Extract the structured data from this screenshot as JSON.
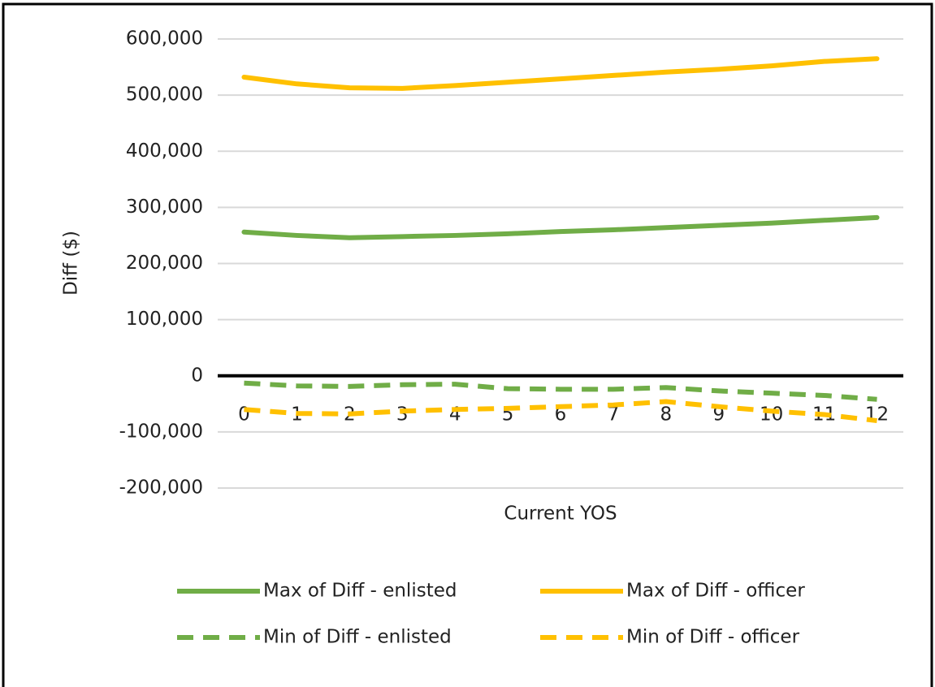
{
  "chart_data": {
    "type": "line",
    "x_label": "Current YOS",
    "y_label": "Diff  ($)",
    "categories": [
      "0",
      "1",
      "2",
      "3",
      "4",
      "5",
      "6",
      "7",
      "8",
      "9",
      "10",
      "11",
      "12"
    ],
    "series": [
      {
        "name": "Max of Diff - enlisted",
        "color": "#70ad47",
        "dashed": false,
        "values": [
          256000,
          250000,
          246000,
          248000,
          250000,
          253000,
          257000,
          260000,
          264000,
          268000,
          272000,
          277000,
          282000
        ]
      },
      {
        "name": "Max of Diff - officer",
        "color": "#ffc000",
        "dashed": false,
        "values": [
          532000,
          520000,
          513000,
          512000,
          517000,
          523000,
          529000,
          535000,
          541000,
          546000,
          552000,
          560000,
          565000
        ]
      },
      {
        "name": "Min of Diff - enlisted",
        "color": "#70ad47",
        "dashed": true,
        "values": [
          -13000,
          -18000,
          -19000,
          -16000,
          -15000,
          -23000,
          -24000,
          -24000,
          -21000,
          -27000,
          -31000,
          -35000,
          -42000
        ]
      },
      {
        "name": "Min of Diff - officer",
        "color": "#ffc000",
        "dashed": true,
        "values": [
          -60000,
          -67000,
          -68000,
          -63000,
          -60000,
          -58000,
          -55000,
          -52000,
          -46000,
          -55000,
          -63000,
          -69000,
          -80000
        ]
      }
    ],
    "ylim": [
      -200000,
      600000
    ],
    "yticks": [
      {
        "value": -200000,
        "label": "-200,000"
      },
      {
        "value": -100000,
        "label": "-100,000"
      },
      0,
      {
        "value": 100000,
        "label": "100,000"
      },
      {
        "value": 200000,
        "label": "200,000"
      },
      {
        "value": 300000,
        "label": "300,000"
      },
      {
        "value": 400000,
        "label": "400,000"
      },
      {
        "value": 500000,
        "label": "500,000"
      },
      {
        "value": 600000,
        "label": "600,000"
      }
    ],
    "grid": true,
    "legend": "bottom"
  }
}
